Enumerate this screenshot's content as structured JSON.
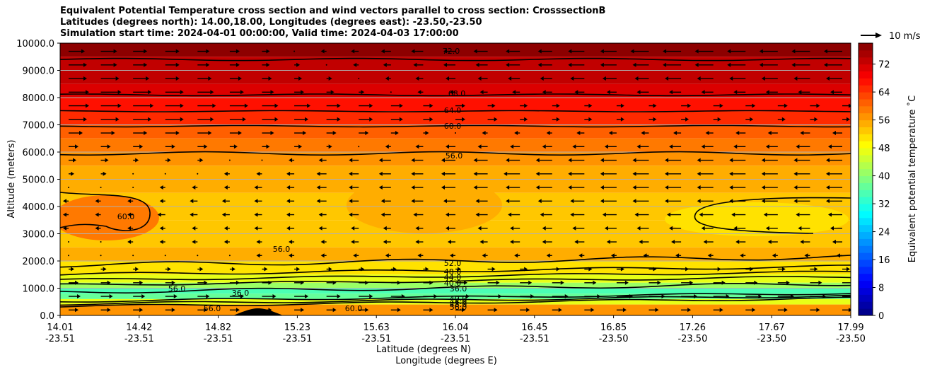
{
  "title_lines": [
    "Equivalent Potential Temperature cross section and wind vectors parallel to cross section: CrosssectionB",
    "Latitudes (degrees north): 14.00,18.00, Longitudes (degrees east): -23.50,-23.50",
    "Simulation start time: 2024-04-01 00:00:00, Valid time: 2024-04-03 17:00:00"
  ],
  "chart_data": {
    "type": "contour",
    "ylabel": "Altitude (meters)",
    "xlabel_lat": "Latitude (degrees N)",
    "xlabel_lon": "Longitude (degrees E)",
    "ylim": [
      0,
      10000
    ],
    "y_ticks": [
      "0.0",
      "1000.0",
      "2000.0",
      "3000.0",
      "4000.0",
      "5000.0",
      "6000.0",
      "7000.0",
      "8000.0",
      "9000.0",
      "10000.0"
    ],
    "x_ticks": [
      {
        "lat": "14.01",
        "lon": "-23.51"
      },
      {
        "lat": "14.42",
        "lon": "-23.51"
      },
      {
        "lat": "14.82",
        "lon": "-23.51"
      },
      {
        "lat": "15.23",
        "lon": "-23.51"
      },
      {
        "lat": "15.63",
        "lon": "-23.51"
      },
      {
        "lat": "16.04",
        "lon": "-23.51"
      },
      {
        "lat": "16.45",
        "lon": "-23.51"
      },
      {
        "lat": "16.85",
        "lon": "-23.50"
      },
      {
        "lat": "17.26",
        "lon": "-23.50"
      },
      {
        "lat": "17.67",
        "lon": "-23.50"
      },
      {
        "lat": "17.99",
        "lon": "-23.50"
      }
    ],
    "colorbar": {
      "label": "Equivalent potential temperature ˚C",
      "min": 0,
      "max": 78,
      "ticks": [
        "0",
        "8",
        "16",
        "24",
        "32",
        "40",
        "48",
        "56",
        "64",
        "72"
      ]
    },
    "contour_labels": [
      "72.0",
      "68.0",
      "64.0",
      "60.0",
      "56.0",
      "52.0",
      "48.0",
      "44.0",
      "40.0",
      "36.0",
      "60.0",
      "56.0",
      "36.0",
      "56.0",
      "60.0",
      "56.0",
      "40.0",
      "44.0",
      "48.0",
      "56.0"
    ],
    "quiver_key": "10 m/s",
    "bands": [
      {
        "alt": 10000,
        "theta": 76
      },
      {
        "alt": 9500,
        "theta": 73
      },
      {
        "alt": 9000,
        "theta": 72
      },
      {
        "alt": 8500,
        "theta": 70
      },
      {
        "alt": 8000,
        "theta": 67
      },
      {
        "alt": 7500,
        "theta": 64
      },
      {
        "alt": 7000,
        "theta": 61
      },
      {
        "alt": 6500,
        "theta": 59
      },
      {
        "alt": 6000,
        "theta": 57
      },
      {
        "alt": 5500,
        "theta": 54
      },
      {
        "alt": 4500,
        "theta": 53
      },
      {
        "alt": 3500,
        "theta": 53
      },
      {
        "alt": 2500,
        "theta": 54
      },
      {
        "alt": 2000,
        "theta": 51
      },
      {
        "alt": 1500,
        "theta": 46
      },
      {
        "alt": 1200,
        "theta": 40
      },
      {
        "alt": 1000,
        "theta": 35
      },
      {
        "alt": 800,
        "theta": 36
      },
      {
        "alt": 600,
        "theta": 46
      },
      {
        "alt": 400,
        "theta": 56
      },
      {
        "alt": 0,
        "theta": 60
      }
    ],
    "wind_rows": [
      {
        "alt": 9700,
        "u": [
          6,
          6,
          5,
          5,
          4,
          3,
          2,
          0,
          -1,
          -2,
          -3,
          -4,
          -4,
          -5,
          -5,
          -5,
          -6,
          -6,
          -7,
          -7,
          -7,
          -7,
          -7,
          -7,
          -7
        ]
      },
      {
        "alt": 9200,
        "u": [
          7,
          6,
          5,
          5,
          4,
          3,
          2,
          1,
          0,
          -1,
          -2,
          -3,
          -4,
          -4,
          -5,
          -5,
          -6,
          -6,
          -6,
          -7,
          -7,
          -7,
          -7,
          -7,
          -7
        ]
      },
      {
        "alt": 8700,
        "u": [
          7,
          7,
          6,
          5,
          5,
          4,
          3,
          2,
          1,
          0,
          -1,
          -2,
          -3,
          -3,
          -4,
          -4,
          -5,
          -5,
          -5,
          -6,
          -6,
          -6,
          -6,
          -6,
          -6
        ]
      },
      {
        "alt": 8200,
        "u": [
          8,
          8,
          7,
          7,
          6,
          5,
          4,
          3,
          2,
          1,
          0,
          -1,
          -1,
          -2,
          -2,
          -3,
          -3,
          -3,
          -4,
          -4,
          -4,
          -4,
          -4,
          -4,
          -4
        ]
      },
      {
        "alt": 7700,
        "u": [
          8,
          8,
          8,
          7,
          7,
          7,
          6,
          6,
          5,
          5,
          4,
          3,
          3,
          2,
          2,
          2,
          2,
          2,
          2,
          3,
          3,
          3,
          3,
          3,
          3
        ]
      },
      {
        "alt": 7200,
        "u": [
          7,
          7,
          7,
          7,
          6,
          6,
          6,
          5,
          5,
          5,
          4,
          3,
          3,
          3,
          2,
          2,
          2,
          2,
          2,
          2,
          2,
          2,
          2,
          2,
          2
        ]
      },
      {
        "alt": 6700,
        "u": [
          5,
          5,
          5,
          5,
          5,
          4,
          4,
          4,
          3,
          3,
          2,
          1,
          0,
          -1,
          -1,
          -1,
          -2,
          -2,
          -2,
          -2,
          -2,
          -3,
          -3,
          -3,
          -3
        ]
      },
      {
        "alt": 6200,
        "u": [
          3,
          3,
          3,
          3,
          3,
          2,
          2,
          2,
          1,
          0,
          -1,
          -2,
          -3,
          -3,
          -3,
          -3,
          -4,
          -4,
          -4,
          -4,
          -4,
          -4,
          -4,
          -5,
          -5
        ]
      },
      {
        "alt": 5700,
        "u": [
          2,
          2,
          1,
          1,
          1,
          0,
          0,
          -1,
          -2,
          -3,
          -4,
          -4,
          -5,
          -5,
          -5,
          -6,
          -6,
          -6,
          -6,
          -6,
          -6,
          -6,
          -6,
          -6,
          -6
        ]
      },
      {
        "alt": 5200,
        "u": [
          1,
          1,
          0,
          0,
          0,
          -1,
          -1,
          -2,
          -3,
          -3,
          -4,
          -4,
          -5,
          -5,
          -6,
          -6,
          -6,
          -6,
          -6,
          -6,
          -6,
          -6,
          -6,
          -6,
          -6
        ]
      },
      {
        "alt": 4700,
        "u": [
          0,
          0,
          0,
          -1,
          -1,
          -1,
          -2,
          -2,
          -3,
          -3,
          -4,
          -4,
          -5,
          -5,
          -5,
          -6,
          -6,
          -6,
          -6,
          -6,
          -6,
          -6,
          -6,
          -6,
          -6
        ]
      },
      {
        "alt": 4200,
        "u": [
          -1,
          -1,
          -1,
          -1,
          -2,
          -2,
          -2,
          -2,
          -3,
          -3,
          -3,
          -4,
          -4,
          -4,
          -5,
          -5,
          -5,
          -6,
          -6,
          -6,
          -6,
          -6,
          -6,
          -6,
          -6
        ]
      },
      {
        "alt": 3700,
        "u": [
          -1,
          -1,
          -1,
          -2,
          -2,
          -2,
          -2,
          -2,
          -2,
          -3,
          -3,
          -3,
          -3,
          -4,
          -4,
          -4,
          -5,
          -5,
          -5,
          -5,
          -5,
          -5,
          -5,
          -5,
          -5
        ]
      },
      {
        "alt": 3200,
        "u": [
          -1,
          -1,
          -1,
          -1,
          -1,
          -1,
          -2,
          -2,
          -2,
          -2,
          -2,
          -2,
          -3,
          -3,
          -3,
          -3,
          -4,
          -4,
          -4,
          -4,
          -4,
          -4,
          -4,
          -4,
          -4
        ]
      },
      {
        "alt": 2700,
        "u": [
          0,
          0,
          -1,
          -1,
          -1,
          -1,
          -1,
          -1,
          -1,
          -2,
          -2,
          -2,
          -2,
          -2,
          -3,
          -3,
          -3,
          -3,
          -3,
          -3,
          -3,
          -3,
          -3,
          -3,
          -3
        ]
      },
      {
        "alt": 2200,
        "u": [
          0,
          0,
          0,
          0,
          0,
          0,
          -1,
          -1,
          -1,
          -1,
          -1,
          -1,
          -1,
          -1,
          -1,
          -1,
          -1,
          -1,
          -1,
          -1,
          -1,
          -1,
          -1,
          -1,
          -1
        ]
      },
      {
        "alt": 1700,
        "u": [
          1,
          1,
          1,
          1,
          1,
          1,
          1,
          1,
          1,
          1,
          1,
          1,
          1,
          2,
          2,
          2,
          2,
          2,
          2,
          2,
          2,
          2,
          2,
          2,
          2
        ]
      },
      {
        "alt": 1200,
        "u": [
          3,
          3,
          3,
          3,
          3,
          3,
          3,
          3,
          3,
          3,
          3,
          3,
          4,
          4,
          4,
          4,
          4,
          4,
          4,
          4,
          4,
          4,
          4,
          4,
          4
        ]
      },
      {
        "alt": 700,
        "u": [
          4,
          4,
          4,
          4,
          4,
          5,
          5,
          5,
          5,
          5,
          5,
          5,
          5,
          5,
          5,
          6,
          6,
          6,
          6,
          6,
          6,
          6,
          6,
          6,
          6
        ]
      },
      {
        "alt": 200,
        "u": [
          3,
          3,
          3,
          3,
          3,
          3,
          3,
          3,
          3,
          3,
          3,
          3,
          3,
          3,
          3,
          3,
          3,
          3,
          3,
          3,
          3,
          3,
          3,
          3,
          3
        ]
      }
    ]
  }
}
